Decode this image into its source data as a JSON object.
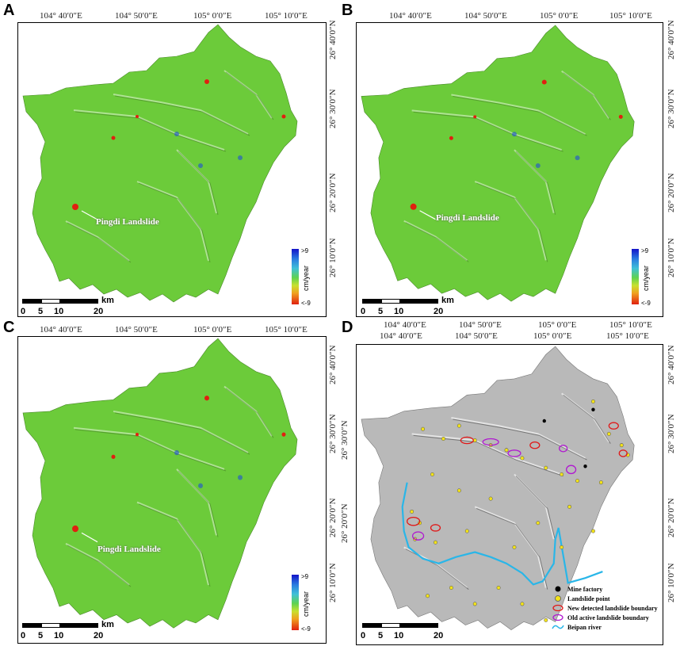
{
  "panels": [
    {
      "label": "A",
      "type": "deformation",
      "callout": "Pingdi Landslide"
    },
    {
      "label": "B",
      "type": "deformation",
      "callout": "Pingdi Landslide"
    },
    {
      "label": "C",
      "type": "deformation",
      "callout": "Pingdi Landslide"
    },
    {
      "label": "D",
      "type": "inventory",
      "callout": ""
    }
  ],
  "top_ticks": [
    "104° 40′0″E",
    "104° 50′0″E",
    "105° 0′0″E",
    "105° 10′0″E"
  ],
  "right_ticks": [
    "26° 40′0″N",
    "26° 30′0″N",
    "26° 20′0″N",
    "26° 10′0″N"
  ],
  "colorbar": {
    "max": ">9",
    "min": "<-9",
    "unit": "cm/year"
  },
  "scalebar": {
    "labels": [
      "0",
      "5",
      "10",
      "20"
    ],
    "unit": "km"
  },
  "colors": {
    "deformation_base": "#6ccb3a",
    "stable_high": "#e02010",
    "uplift": "#1e4fd8",
    "hillshade": "#b9b9b9",
    "river": "#29b6e8",
    "landslide_point": "#f2e21a",
    "new_boundary": "#e01818",
    "old_boundary": "#b018d0"
  },
  "legend": [
    {
      "icon": "mine-factory-dot",
      "text": "Mine factory"
    },
    {
      "icon": "landslide-point-dot",
      "text": "Landslide point"
    },
    {
      "icon": "new-boundary-ellipse",
      "text": "New detected landslide boundary"
    },
    {
      "icon": "old-boundary-ellipse",
      "text": "Old active landslide boundary"
    },
    {
      "icon": "river-line",
      "text": "Beipan river"
    }
  ]
}
